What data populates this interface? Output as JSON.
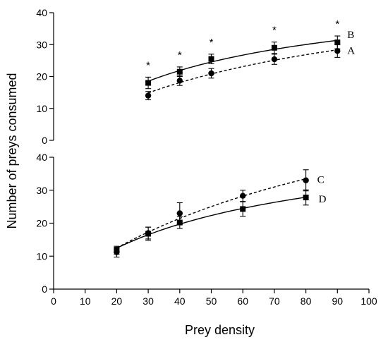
{
  "chart_data": {
    "type": "scatter",
    "xlabel": "Prey density",
    "ylabel": "Number of preys consumed",
    "xlim": [
      0,
      100
    ],
    "xticks": [
      0,
      10,
      20,
      30,
      40,
      50,
      60,
      70,
      80,
      90,
      100
    ],
    "panels": [
      {
        "ylim": [
          0,
          40
        ],
        "yticks": [
          0,
          10,
          20,
          30,
          40
        ],
        "significance_marker": "*",
        "significance_x": [
          30,
          40,
          50,
          70,
          90
        ],
        "series": [
          {
            "name": "B",
            "marker": "square",
            "line": "solid",
            "x": [
              30,
              40,
              50,
              70,
              90
            ],
            "y": [
              18.0,
              21.5,
              25.5,
              29.0,
              30.7
            ],
            "err": [
              1.8,
              1.5,
              1.5,
              1.8,
              2.0
            ]
          },
          {
            "name": "A",
            "marker": "circle",
            "line": "dashed",
            "x": [
              30,
              40,
              50,
              70,
              90
            ],
            "y": [
              14.0,
              18.7,
              21.0,
              25.4,
              28.0
            ],
            "err": [
              1.3,
              1.5,
              1.5,
              1.6,
              2.0
            ]
          }
        ]
      },
      {
        "ylim": [
          0,
          40
        ],
        "yticks": [
          0,
          10,
          20,
          30,
          40
        ],
        "series": [
          {
            "name": "C",
            "marker": "circle",
            "line": "dashed",
            "x": [
              20,
              30,
              40,
              60,
              80
            ],
            "y": [
              11.2,
              17.0,
              23.0,
              28.3,
              33.0
            ],
            "err": [
              1.5,
              1.8,
              3.2,
              1.7,
              3.2
            ]
          },
          {
            "name": "D",
            "marker": "square",
            "line": "solid",
            "x": [
              20,
              30,
              40,
              60,
              80
            ],
            "y": [
              11.8,
              16.8,
              20.2,
              24.3,
              27.8
            ],
            "err": [
              1.2,
              2.0,
              1.8,
              2.2,
              2.3
            ]
          }
        ]
      }
    ]
  }
}
